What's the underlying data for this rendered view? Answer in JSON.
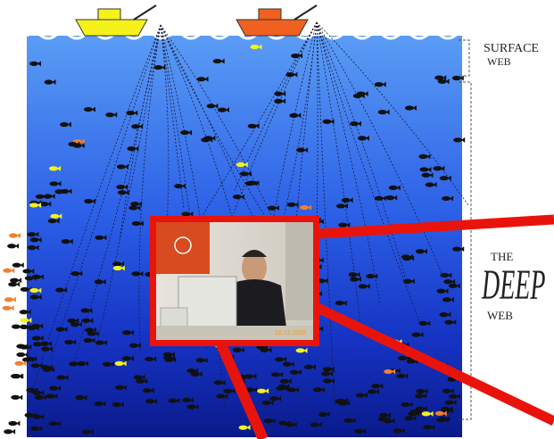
{
  "labels": {
    "surface": [
      "SURFACE",
      "WEB"
    ],
    "deep": [
      "THE",
      "DEEP",
      "WEB"
    ]
  },
  "photo": {
    "date_stamp": "18.12.2006"
  }
}
